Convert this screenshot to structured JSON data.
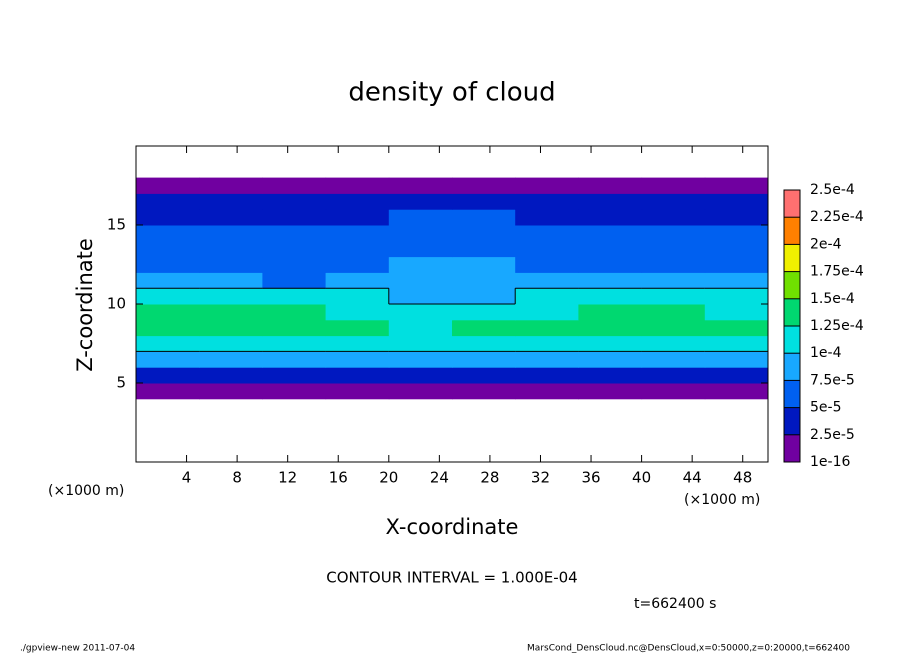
{
  "chart_data": {
    "type": "heatmap",
    "title": "density of cloud",
    "x_label": "X-coordinate",
    "y_label": "Z-coordinate",
    "x_unit": "(×1000 m)",
    "y_unit": "(×1000 m)",
    "contour_label": "CONTOUR INTERVAL = 1.000E-04",
    "contour_interval": 0.0001,
    "time_label": "t=662400 s",
    "footer_left": "./gpview-new  2011-07-04",
    "footer_right": "MarsCond_DensCloud.nc@DensCloud,x=0:50000,z=0:20000,t=662400",
    "xlim": [
      0,
      50
    ],
    "ylim": [
      0,
      20
    ],
    "xticks": [
      4,
      8,
      12,
      16,
      20,
      24,
      28,
      32,
      36,
      40,
      44,
      48
    ],
    "yticks": [
      5,
      10,
      15
    ],
    "x": [
      2.5,
      7.5,
      12.5,
      17.5,
      22.5,
      27.5,
      32.5,
      37.5,
      42.5,
      47.5
    ],
    "y": [
      0.5,
      1.5,
      2.5,
      3.5,
      4.5,
      5.5,
      6.5,
      7.5,
      8.5,
      9.5,
      10.5,
      11.5,
      12.5,
      13.5,
      14.5,
      15.5,
      16.5,
      17.5,
      18.5,
      19.5
    ],
    "z": [
      [
        null,
        null,
        null,
        null,
        null,
        null,
        null,
        null,
        null,
        null
      ],
      [
        null,
        null,
        null,
        null,
        null,
        null,
        null,
        null,
        null,
        null
      ],
      [
        null,
        null,
        null,
        null,
        null,
        null,
        null,
        null,
        null,
        null
      ],
      [
        null,
        null,
        null,
        null,
        null,
        null,
        null,
        null,
        null,
        null
      ],
      [
        1e-05,
        1e-05,
        1e-05,
        1e-05,
        1e-05,
        1e-05,
        1e-05,
        1e-05,
        1e-05,
        1e-05
      ],
      [
        3e-05,
        4e-05,
        3e-05,
        3.5e-05,
        4e-05,
        3e-05,
        3.5e-05,
        3e-05,
        4e-05,
        3.5e-05
      ],
      [
        8e-05,
        7.5e-05,
        8.5e-05,
        8e-05,
        7.5e-05,
        8e-05,
        8.5e-05,
        8e-05,
        7.5e-05,
        8e-05
      ],
      [
        0.00011,
        0.000115,
        0.00011,
        0.000105,
        0.00011,
        0.000115,
        0.00011,
        0.000105,
        0.000115,
        0.00011
      ],
      [
        0.00013,
        0.00014,
        0.000135,
        0.00013,
        0.00012,
        0.00013,
        0.000135,
        0.00013,
        0.00014,
        0.000135
      ],
      [
        0.000125,
        0.000135,
        0.00013,
        0.00012,
        0.000105,
        0.000115,
        0.00012,
        0.000125,
        0.00013,
        0.00012
      ],
      [
        0.000105,
        0.00011,
        0.000105,
        0.0001,
        9e-05,
        9.5e-05,
        0.000105,
        0.000105,
        0.00011,
        0.000105
      ],
      [
        8e-05,
        7.5e-05,
        7e-05,
        7.5e-05,
        9e-05,
        9.5e-05,
        8e-05,
        7.5e-05,
        7.5e-05,
        8e-05
      ],
      [
        6e-05,
        6.5e-05,
        6e-05,
        6.5e-05,
        8.5e-05,
        8e-05,
        6.5e-05,
        6e-05,
        6e-05,
        6.5e-05
      ],
      [
        5.5e-05,
        6e-05,
        6e-05,
        6e-05,
        7e-05,
        7e-05,
        6e-05,
        5.5e-05,
        6e-05,
        5.5e-05
      ],
      [
        5e-05,
        5.5e-05,
        5.5e-05,
        5.5e-05,
        6e-05,
        6e-05,
        5.5e-05,
        5e-05,
        5.5e-05,
        5e-05
      ],
      [
        4e-05,
        4.5e-05,
        4.5e-05,
        4.5e-05,
        5e-05,
        5e-05,
        4.5e-05,
        4e-05,
        4.5e-05,
        4e-05
      ],
      [
        3e-05,
        3e-05,
        3e-05,
        3e-05,
        3e-05,
        3e-05,
        3e-05,
        3e-05,
        3e-05,
        3e-05
      ],
      [
        1e-05,
        1e-05,
        1e-05,
        1e-05,
        1e-05,
        1e-05,
        1e-05,
        1e-05,
        1e-05,
        1e-05
      ],
      [
        null,
        null,
        null,
        null,
        null,
        null,
        null,
        null,
        null,
        null
      ],
      [
        null,
        null,
        null,
        null,
        null,
        null,
        null,
        null,
        null,
        null
      ]
    ],
    "levels": [
      1e-16,
      {
        "value": 2.5e-05,
        "label": "2.5e-5"
      },
      {
        "value": 5e-05,
        "label": "5e-5"
      },
      {
        "value": 7.5e-05,
        "label": "7.5e-5"
      },
      {
        "value": 0.0001,
        "label": "1e-4"
      },
      {
        "value": 0.000125,
        "label": "1.25e-4"
      },
      {
        "value": 0.00015,
        "label": "1.5e-4"
      },
      {
        "value": 0.000175,
        "label": "1.75e-4"
      },
      {
        "value": 0.0002,
        "label": "2e-4"
      },
      {
        "value": 0.000225,
        "label": "2.25e-4"
      },
      {
        "value": 0.00025,
        "label": "2.5e-4"
      }
    ],
    "colors": [
      "#7000a0",
      "#0018c0",
      "#0060f0",
      "#18a8ff",
      "#00e0e0",
      "#00d870",
      "#70e000",
      "#f0f000",
      "#ff8000",
      "#ff7070"
    ]
  }
}
